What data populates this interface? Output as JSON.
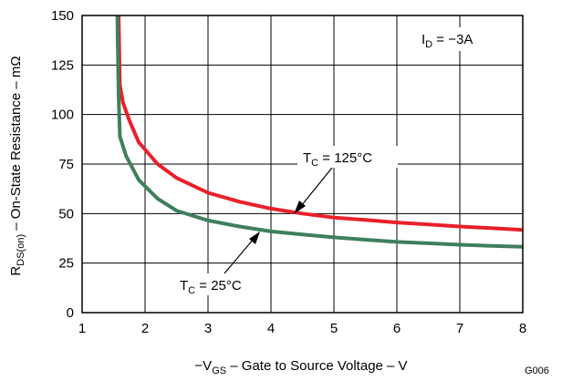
{
  "chart_data": {
    "type": "line",
    "xlim": [
      1,
      8
    ],
    "ylim": [
      0,
      150
    ],
    "x_ticks": [
      1,
      2,
      3,
      4,
      5,
      6,
      7,
      8
    ],
    "y_ticks": [
      0,
      25,
      50,
      75,
      100,
      125,
      150
    ],
    "grid": true,
    "xlabel": {
      "prefix": "−V",
      "sub": "GS",
      "suffix": " – Gate to Source Voltage – V"
    },
    "ylabel": {
      "prefix": "R",
      "sub": "DS(on)",
      "suffix": " – On-State Resistance – mΩ"
    },
    "condition": {
      "prefix": "I",
      "sub": "D",
      "suffix": " = −3A"
    },
    "figure_code": "G006",
    "series": [
      {
        "label": {
          "prefix": "T",
          "sub": "C",
          "suffix": " = 125°C"
        },
        "color": "#e8202a",
        "x": [
          1.58,
          1.6,
          1.65,
          1.75,
          1.9,
          2.2,
          2.5,
          3.0,
          3.5,
          4.0,
          4.5,
          5.0,
          5.5,
          6.0,
          6.5,
          7.0,
          7.5,
          8.0
        ],
        "y": [
          150,
          115,
          106,
          97,
          86,
          75,
          68,
          60.5,
          56,
          52.5,
          50,
          48,
          46.8,
          45.5,
          44.5,
          43.5,
          42.7,
          41.8
        ]
      },
      {
        "label": {
          "prefix": "T",
          "sub": "C",
          "suffix": " = 25°C"
        },
        "color": "#3e7f5c",
        "x": [
          1.56,
          1.58,
          1.6,
          1.7,
          1.9,
          2.2,
          2.5,
          3.0,
          3.5,
          4.0,
          4.5,
          5.0,
          5.5,
          6.0,
          6.5,
          7.0,
          7.5,
          8.0
        ],
        "y": [
          150,
          110,
          89,
          79,
          67,
          57.5,
          51.5,
          46.5,
          43.5,
          41,
          39.5,
          38,
          36.8,
          35.7,
          35,
          34.3,
          33.7,
          33.2
        ]
      }
    ]
  }
}
